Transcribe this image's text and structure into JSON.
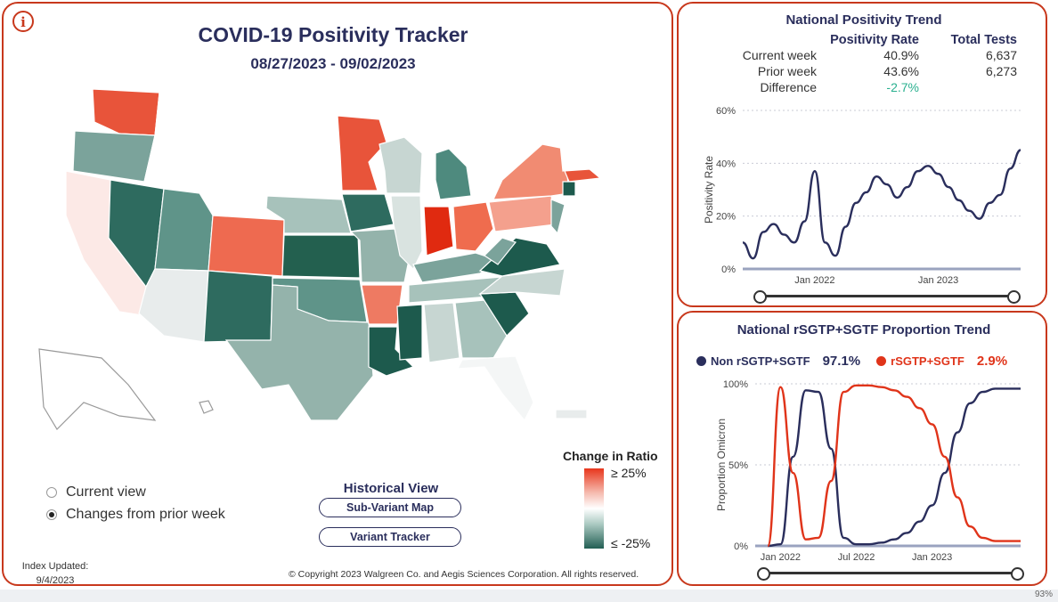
{
  "left": {
    "info_icon": "i",
    "title": "COVID-19 Positivity Tracker",
    "date_range": "08/27/2023 - 09/02/2023",
    "radio_current": "Current view",
    "radio_changes": "Changes from prior week",
    "historical_title": "Historical View",
    "btn_subvariant": "Sub-Variant Map",
    "btn_variant": "Variant Tracker",
    "legend_title": "Change in Ratio",
    "legend_high": "≥ 25%",
    "legend_low": "≤ -25%",
    "index_label": "Index Updated:",
    "index_date": "9/4/2023",
    "copyright": "© Copyright 2023 Walgreen Co. and Aegis Sciences Corporation. All rights reserved.",
    "colors": {
      "high": "#e8361c",
      "mid": "#ffffff",
      "low": "#235f54",
      "panel_border": "#c8381c"
    }
  },
  "trend": {
    "title": "National Positivity Trend",
    "col_rate": "Positivity Rate",
    "col_tests": "Total Tests",
    "rows": [
      {
        "label": "Current week",
        "rate": "40.9%",
        "tests": "6,637"
      },
      {
        "label": "Prior week",
        "rate": "43.6%",
        "tests": "6,273"
      },
      {
        "label": "Difference",
        "rate": "-2.7%",
        "tests": ""
      }
    ]
  },
  "sgtf": {
    "title": "National rSGTP+SGTF Proportion Trend",
    "non_label": "Non rSGTP+SGTF",
    "non_value": "97.1%",
    "yes_label": "rSGTP+SGTF",
    "yes_value": "2.9%"
  },
  "statusbar": {
    "zoom": "93%"
  },
  "chart_data": [
    {
      "type": "line",
      "title": "National Positivity Trend",
      "ylabel": "Positivity Rate",
      "ylim": [
        0,
        60
      ],
      "yticks": [
        "0%",
        "20%",
        "40%",
        "60%"
      ],
      "xticks": [
        "Jan 2022",
        "Jan 2023"
      ],
      "grid": true,
      "series": [
        {
          "color": "#2a2e5c",
          "x": [
            "2021-06",
            "2021-07",
            "2021-08",
            "2021-09",
            "2021-10",
            "2021-11",
            "2021-12",
            "2022-01",
            "2022-02",
            "2022-03",
            "2022-04",
            "2022-05",
            "2022-06",
            "2022-07",
            "2022-08",
            "2022-09",
            "2022-10",
            "2022-11",
            "2022-12",
            "2023-01",
            "2023-02",
            "2023-03",
            "2023-04",
            "2023-05",
            "2023-06",
            "2023-07",
            "2023-08",
            "2023-09"
          ],
          "values": [
            10,
            4,
            14,
            17,
            13,
            10,
            18,
            37,
            10,
            5,
            16,
            25,
            29,
            35,
            32,
            27,
            31,
            37,
            39,
            36,
            31,
            26,
            22,
            19,
            25,
            28,
            38,
            45
          ]
        }
      ]
    },
    {
      "type": "line",
      "title": "National rSGTP+SGTF Proportion Trend",
      "ylabel": "Proportion Omicron",
      "ylim": [
        0,
        100
      ],
      "yticks": [
        "0%",
        "50%",
        "100%"
      ],
      "xticks": [
        "Jan 2022",
        "Jul 2022",
        "Jan 2023"
      ],
      "grid": true,
      "series": [
        {
          "name": "Non rSGTP+SGTF",
          "color": "#2a2e5c",
          "x": [
            "2021-12",
            "2022-01",
            "2022-02",
            "2022-03",
            "2022-04",
            "2022-05",
            "2022-06",
            "2022-07",
            "2022-08",
            "2022-09",
            "2022-10",
            "2022-11",
            "2022-12",
            "2023-01",
            "2023-02",
            "2023-03",
            "2023-04",
            "2023-05",
            "2023-06",
            "2023-07",
            "2023-08"
          ],
          "values": [
            0,
            1,
            55,
            96,
            95,
            60,
            5,
            1,
            1,
            2,
            4,
            8,
            15,
            25,
            45,
            70,
            88,
            95,
            97,
            97,
            97
          ]
        },
        {
          "name": "rSGTP+SGTF",
          "color": "#e0341a",
          "x": [
            "2021-12",
            "2022-01",
            "2022-02",
            "2022-03",
            "2022-04",
            "2022-05",
            "2022-06",
            "2022-07",
            "2022-08",
            "2022-09",
            "2022-10",
            "2022-11",
            "2022-12",
            "2023-01",
            "2023-02",
            "2023-03",
            "2023-04",
            "2023-05",
            "2023-06",
            "2023-07",
            "2023-08"
          ],
          "values": [
            0,
            98,
            45,
            4,
            5,
            40,
            95,
            99,
            99,
            98,
            96,
            92,
            85,
            75,
            55,
            30,
            12,
            5,
            3,
            3,
            3
          ]
        }
      ]
    }
  ]
}
